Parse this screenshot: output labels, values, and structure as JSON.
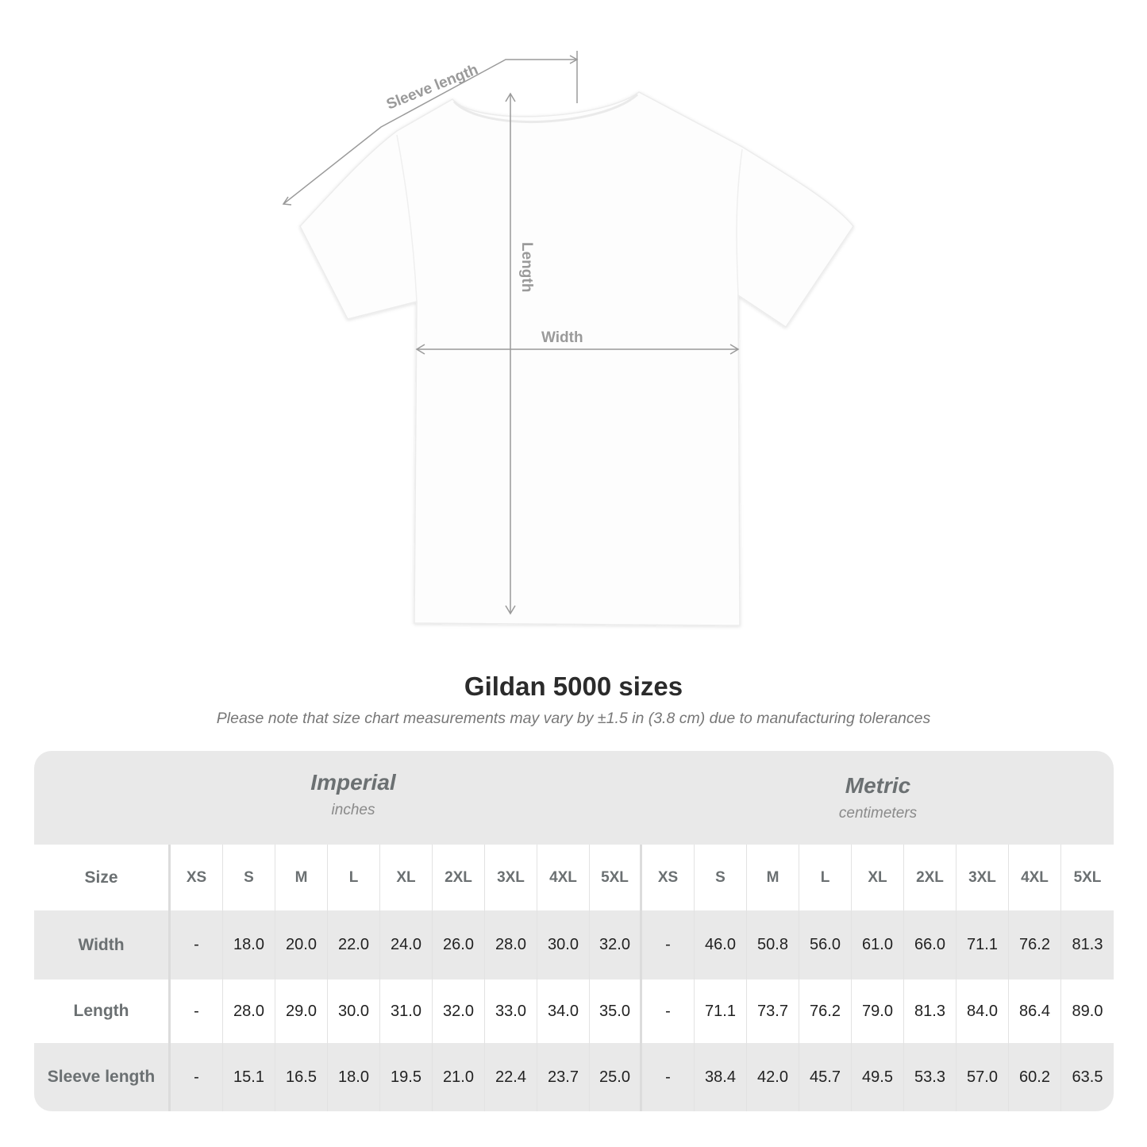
{
  "diagram": {
    "labels": {
      "sleeve_length": "Sleeve length",
      "length": "Length",
      "width": "Width"
    },
    "line_color": "#9a9a9a"
  },
  "title": "Gildan 5000 sizes",
  "subtitle": "Please note that size chart measurements may vary by ±1.5 in (3.8 cm) due to manufacturing tolerances",
  "table": {
    "imperial": {
      "name": "Imperial",
      "unit": "inches"
    },
    "metric": {
      "name": "Metric",
      "unit": "centimeters"
    },
    "size_label": "Size",
    "sizes": [
      "XS",
      "S",
      "M",
      "L",
      "XL",
      "2XL",
      "3XL",
      "4XL",
      "5XL"
    ],
    "rows": [
      {
        "label": "Width",
        "imperial": [
          "-",
          "18.0",
          "20.0",
          "22.0",
          "24.0",
          "26.0",
          "28.0",
          "30.0",
          "32.0"
        ],
        "metric": [
          "-",
          "46.0",
          "50.8",
          "56.0",
          "61.0",
          "66.0",
          "71.1",
          "76.2",
          "81.3"
        ]
      },
      {
        "label": "Length",
        "imperial": [
          "-",
          "28.0",
          "29.0",
          "30.0",
          "31.0",
          "32.0",
          "33.0",
          "34.0",
          "35.0"
        ],
        "metric": [
          "-",
          "71.1",
          "73.7",
          "76.2",
          "79.0",
          "81.3",
          "84.0",
          "86.4",
          "89.0"
        ]
      },
      {
        "label": "Sleeve length",
        "imperial": [
          "-",
          "15.1",
          "16.5",
          "18.0",
          "19.5",
          "21.0",
          "22.4",
          "23.7",
          "25.0"
        ],
        "metric": [
          "-",
          "38.4",
          "42.0",
          "45.7",
          "49.5",
          "53.3",
          "57.0",
          "60.2",
          "63.5"
        ]
      }
    ],
    "colors": {
      "band": "#e9e9e9",
      "label_text": "#6b7072"
    }
  }
}
